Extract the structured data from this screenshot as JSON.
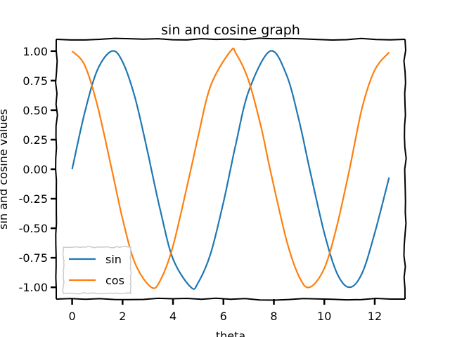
{
  "chart_data": {
    "type": "line",
    "title": "sin and cosine graph",
    "xlabel": "theta",
    "ylabel": "sin and cosine values",
    "xlim": [
      -0.63,
      13.2
    ],
    "ylim": [
      -1.1,
      1.1
    ],
    "xticks": [
      0,
      2,
      4,
      6,
      8,
      10,
      12
    ],
    "xtick_labels": [
      "0",
      "2",
      "4",
      "6",
      "8",
      "10",
      "12"
    ],
    "yticks": [
      1.0,
      0.75,
      0.5,
      0.25,
      0.0,
      -0.25,
      -0.5,
      -0.75,
      -1.0
    ],
    "ytick_labels": [
      "1.00",
      "0.75",
      "0.50",
      "0.25",
      "0.00",
      "-0.25",
      "-0.50",
      "-0.75",
      "-1.00"
    ],
    "x_range": [
      0,
      12.57
    ],
    "grid": false,
    "legend_position": "lower-left",
    "style": "xkcd",
    "series": [
      {
        "name": "sin",
        "color": "#1f77b4",
        "points": [
          [
            0,
            0.0
          ],
          [
            0.5,
            0.48
          ],
          [
            1.0,
            0.84
          ],
          [
            1.57,
            1.0
          ],
          [
            2.0,
            0.91
          ],
          [
            2.5,
            0.6
          ],
          [
            3.0,
            0.14
          ],
          [
            3.14,
            0.0
          ],
          [
            3.5,
            -0.35
          ],
          [
            4.0,
            -0.76
          ],
          [
            4.71,
            -1.0
          ],
          [
            5.0,
            -0.96
          ],
          [
            5.5,
            -0.71
          ],
          [
            6.0,
            -0.28
          ],
          [
            6.28,
            0.0
          ],
          [
            6.5,
            0.22
          ],
          [
            7.0,
            0.66
          ],
          [
            7.85,
            1.0
          ],
          [
            8.5,
            0.8
          ],
          [
            9.0,
            0.41
          ],
          [
            9.42,
            0.0
          ],
          [
            10.0,
            -0.54
          ],
          [
            10.5,
            -0.88
          ],
          [
            11.0,
            -1.0
          ],
          [
            11.5,
            -0.88
          ],
          [
            12.0,
            -0.54
          ],
          [
            12.57,
            -0.07
          ]
        ]
      },
      {
        "name": "cos",
        "color": "#ff7f0e",
        "points": [
          [
            0,
            1.0
          ],
          [
            0.5,
            0.88
          ],
          [
            1.0,
            0.54
          ],
          [
            1.57,
            0.0
          ],
          [
            2.0,
            -0.42
          ],
          [
            2.5,
            -0.8
          ],
          [
            3.14,
            -1.0
          ],
          [
            3.5,
            -0.94
          ],
          [
            4.0,
            -0.65
          ],
          [
            4.71,
            0.0
          ],
          [
            5.0,
            0.28
          ],
          [
            5.5,
            0.71
          ],
          [
            6.28,
            1.0
          ],
          [
            6.5,
            0.98
          ],
          [
            7.0,
            0.75
          ],
          [
            7.5,
            0.35
          ],
          [
            7.85,
            0.0
          ],
          [
            8.5,
            -0.6
          ],
          [
            9.0,
            -0.91
          ],
          [
            9.42,
            -1.0
          ],
          [
            10.0,
            -0.84
          ],
          [
            10.5,
            -0.48
          ],
          [
            11.0,
            0.0
          ],
          [
            11.5,
            0.52
          ],
          [
            12.0,
            0.84
          ],
          [
            12.57,
            0.99
          ]
        ]
      }
    ]
  }
}
